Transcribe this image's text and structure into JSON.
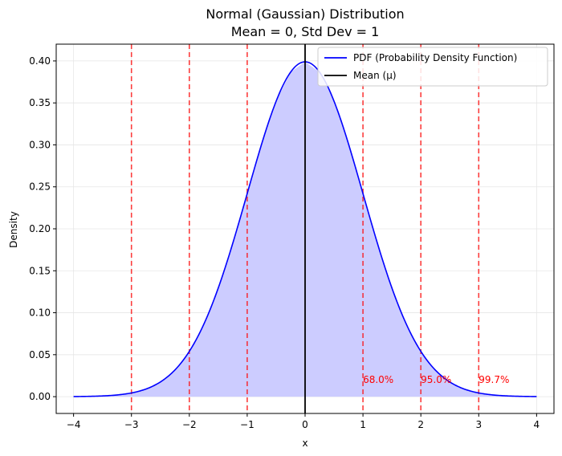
{
  "chart_data": {
    "type": "line",
    "title_line1": "Normal (Gaussian) Distribution",
    "title_line2": "Mean = 0, Std Dev = 1",
    "xlabel": "x",
    "ylabel": "Density",
    "xlim": [
      -4.3,
      4.3
    ],
    "ylim": [
      -0.02,
      0.42
    ],
    "x_ticks": [
      -4,
      -3,
      -2,
      -1,
      0,
      1,
      2,
      3,
      4
    ],
    "x_tick_labels": [
      "−4",
      "−3",
      "−2",
      "−1",
      "0",
      "1",
      "2",
      "3",
      "4"
    ],
    "y_ticks": [
      0.0,
      0.05,
      0.1,
      0.15,
      0.2,
      0.25,
      0.3,
      0.35,
      0.4
    ],
    "y_tick_labels": [
      "0.00",
      "0.05",
      "0.10",
      "0.15",
      "0.20",
      "0.25",
      "0.30",
      "0.35",
      "0.40"
    ],
    "grid": true,
    "legend_position": "top-right",
    "series": [
      {
        "name": "PDF (Probability Density Function)",
        "color": "#0000ff",
        "fill_color": "#ccccff",
        "x": [
          -4.0,
          -3.5,
          -3.0,
          -2.75,
          -2.5,
          -2.25,
          -2.0,
          -1.75,
          -1.5,
          -1.25,
          -1.0,
          -0.75,
          -0.5,
          -0.25,
          0.0,
          0.25,
          0.5,
          0.75,
          1.0,
          1.25,
          1.5,
          1.75,
          2.0,
          2.25,
          2.5,
          2.75,
          3.0,
          3.5,
          4.0
        ],
        "y": [
          0.0001,
          0.0009,
          0.0044,
          0.0091,
          0.0175,
          0.0317,
          0.054,
          0.0863,
          0.1295,
          0.1826,
          0.242,
          0.3011,
          0.3521,
          0.3867,
          0.3989,
          0.3867,
          0.3521,
          0.3011,
          0.242,
          0.1826,
          0.1295,
          0.0863,
          0.054,
          0.0317,
          0.0175,
          0.0091,
          0.0044,
          0.0009,
          0.0001
        ]
      },
      {
        "name": "Mean (μ)",
        "color": "#000000",
        "x": 0
      }
    ],
    "sigma_lines": {
      "color": "#ff0000",
      "x": [
        -3,
        -2,
        -1,
        1,
        2,
        3
      ]
    },
    "annotations": [
      {
        "x": 1,
        "y": 0.02,
        "text": "68.0%"
      },
      {
        "x": 2,
        "y": 0.02,
        "text": "95.0%"
      },
      {
        "x": 3,
        "y": 0.02,
        "text": "99.7%"
      }
    ]
  }
}
